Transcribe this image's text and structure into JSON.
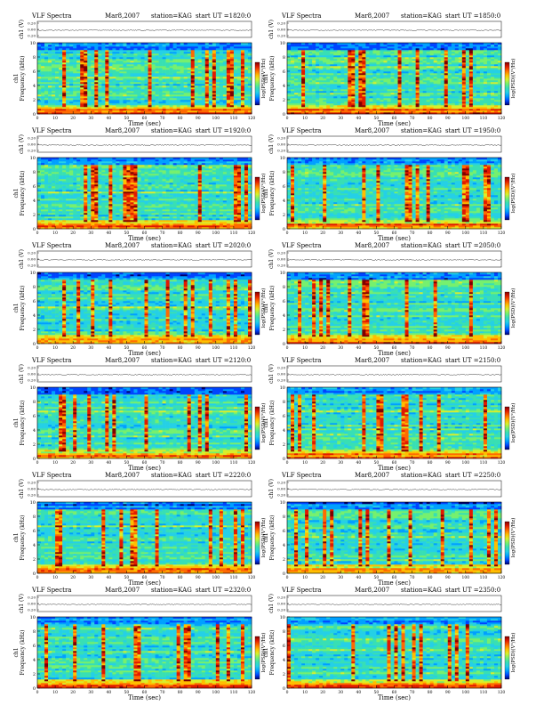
{
  "page": {
    "title_prefix": "VLF Spectra",
    "date": "Mar8,2007",
    "station": "station=KAG",
    "ut_label": "start UT ="
  },
  "labels": {
    "ch1_axis": "ch1 (V)",
    "freq_axis": "Frequency (kHz)",
    "ch1_side": "ch1",
    "time_axis": "Time (sec)",
    "colorbar": "log(PSD)(V²/Hz)"
  },
  "colors": {
    "background": "#ffffff",
    "ink": "#000000"
  },
  "colormap": [
    "#00006e",
    "#0044ff",
    "#00a0ff",
    "#25d0e6",
    "#38dfb4",
    "#76f06e",
    "#d8ef2c",
    "#ffbe00",
    "#ff6a00",
    "#e11a00",
    "#800000"
  ],
  "chart_data": [
    {
      "type": "heatmap",
      "start_ut": "1820:0",
      "xlim": [
        0,
        120
      ],
      "ylim": [
        0,
        10
      ],
      "x_ticks": [
        "0",
        "10",
        "20",
        "30",
        "40",
        "50",
        "60",
        "70",
        "80",
        "90",
        "100",
        "110",
        "120"
      ],
      "y_ticks": [
        "0",
        "2",
        "4",
        "6",
        "8",
        "10"
      ],
      "ch1_ticks": [
        "0.20",
        "0.00",
        "0.20"
      ]
    },
    {
      "type": "heatmap",
      "start_ut": "1850:0",
      "xlim": [
        0,
        120
      ],
      "ylim": [
        0,
        10
      ],
      "x_ticks": [
        "0",
        "10",
        "20",
        "30",
        "40",
        "50",
        "60",
        "70",
        "80",
        "90",
        "100",
        "110",
        "120"
      ],
      "y_ticks": [
        "0",
        "2",
        "4",
        "6",
        "8",
        "10"
      ],
      "ch1_ticks": [
        "0.20",
        "0.00",
        "0.20"
      ]
    },
    {
      "type": "heatmap",
      "start_ut": "1920:0",
      "xlim": [
        0,
        120
      ],
      "ylim": [
        0,
        10
      ],
      "x_ticks": [
        "0",
        "10",
        "20",
        "30",
        "40",
        "50",
        "60",
        "70",
        "80",
        "90",
        "100",
        "110",
        "120"
      ],
      "y_ticks": [
        "0",
        "2",
        "4",
        "6",
        "8",
        "10"
      ],
      "ch1_ticks": [
        "0.20",
        "0.00",
        "0.20"
      ]
    },
    {
      "type": "heatmap",
      "start_ut": "1950:0",
      "xlim": [
        0,
        120
      ],
      "ylim": [
        0,
        10
      ],
      "x_ticks": [
        "0",
        "10",
        "20",
        "30",
        "40",
        "50",
        "60",
        "70",
        "80",
        "90",
        "100",
        "110",
        "120"
      ],
      "y_ticks": [
        "0",
        "2",
        "4",
        "6",
        "8",
        "10"
      ],
      "ch1_ticks": [
        "0.20",
        "0.00",
        "0.20"
      ]
    },
    {
      "type": "heatmap",
      "start_ut": "2020:0",
      "xlim": [
        0,
        120
      ],
      "ylim": [
        0,
        10
      ],
      "x_ticks": [
        "0",
        "10",
        "20",
        "30",
        "40",
        "50",
        "60",
        "70",
        "80",
        "90",
        "100",
        "110",
        "120"
      ],
      "y_ticks": [
        "0",
        "2",
        "4",
        "6",
        "8",
        "10"
      ],
      "ch1_ticks": [
        "0.20",
        "0.00",
        "0.20"
      ]
    },
    {
      "type": "heatmap",
      "start_ut": "2050:0",
      "xlim": [
        0,
        120
      ],
      "ylim": [
        0,
        10
      ],
      "x_ticks": [
        "0",
        "10",
        "20",
        "30",
        "40",
        "50",
        "60",
        "70",
        "80",
        "90",
        "100",
        "110",
        "120"
      ],
      "y_ticks": [
        "0",
        "2",
        "4",
        "6",
        "8",
        "10"
      ],
      "ch1_ticks": [
        "0.20",
        "0.00",
        "0.20"
      ]
    },
    {
      "type": "heatmap",
      "start_ut": "2120:0",
      "xlim": [
        0,
        120
      ],
      "ylim": [
        0,
        10
      ],
      "x_ticks": [
        "0",
        "10",
        "20",
        "30",
        "40",
        "50",
        "60",
        "70",
        "80",
        "90",
        "100",
        "110",
        "120"
      ],
      "y_ticks": [
        "0",
        "2",
        "4",
        "6",
        "8",
        "10"
      ],
      "ch1_ticks": [
        "0.20",
        "0.00",
        "0.20"
      ]
    },
    {
      "type": "heatmap",
      "start_ut": "2150:0",
      "xlim": [
        0,
        120
      ],
      "ylim": [
        0,
        10
      ],
      "x_ticks": [
        "0",
        "10",
        "20",
        "30",
        "40",
        "50",
        "60",
        "70",
        "80",
        "90",
        "100",
        "110",
        "120"
      ],
      "y_ticks": [
        "0",
        "2",
        "4",
        "6",
        "8",
        "10"
      ],
      "ch1_ticks": [
        "0.20",
        "0.00",
        "0.20"
      ]
    },
    {
      "type": "heatmap",
      "start_ut": "2220:0",
      "xlim": [
        0,
        120
      ],
      "ylim": [
        0,
        10
      ],
      "x_ticks": [
        "0",
        "10",
        "20",
        "30",
        "40",
        "50",
        "60",
        "70",
        "80",
        "90",
        "100",
        "110",
        "120"
      ],
      "y_ticks": [
        "0",
        "2",
        "4",
        "6",
        "8",
        "10"
      ],
      "ch1_ticks": [
        "0.20",
        "0.00",
        "0.20"
      ]
    },
    {
      "type": "heatmap",
      "start_ut": "2250:0",
      "xlim": [
        0,
        120
      ],
      "ylim": [
        0,
        10
      ],
      "x_ticks": [
        "0",
        "10",
        "20",
        "30",
        "40",
        "50",
        "60",
        "70",
        "80",
        "90",
        "100",
        "110",
        "120"
      ],
      "y_ticks": [
        "0",
        "2",
        "4",
        "6",
        "8",
        "10"
      ],
      "ch1_ticks": [
        "0.20",
        "0.00",
        "0.20"
      ]
    },
    {
      "type": "heatmap",
      "start_ut": "2320:0",
      "xlim": [
        0,
        120
      ],
      "ylim": [
        0,
        10
      ],
      "x_ticks": [
        "0",
        "10",
        "20",
        "30",
        "40",
        "50",
        "60",
        "70",
        "80",
        "90",
        "100",
        "110",
        "120"
      ],
      "y_ticks": [
        "0",
        "2",
        "4",
        "6",
        "8",
        "10"
      ],
      "ch1_ticks": [
        "0.20",
        "0.00",
        "0.20"
      ]
    },
    {
      "type": "heatmap",
      "start_ut": "2350:0",
      "xlim": [
        0,
        120
      ],
      "ylim": [
        0,
        10
      ],
      "x_ticks": [
        "0",
        "10",
        "20",
        "30",
        "40",
        "50",
        "60",
        "70",
        "80",
        "90",
        "100",
        "110",
        "120"
      ],
      "y_ticks": [
        "0",
        "2",
        "4",
        "6",
        "8",
        "10"
      ],
      "ch1_ticks": [
        "0.20",
        "0.00",
        "0.20"
      ]
    }
  ]
}
